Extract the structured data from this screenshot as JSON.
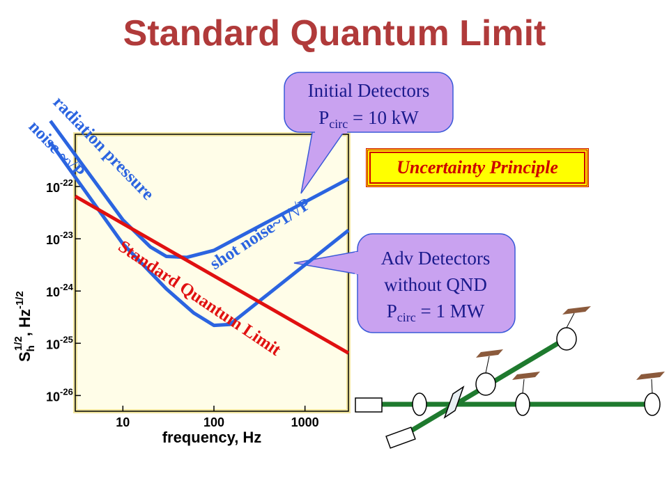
{
  "slide": {
    "title": "Standard Quantum Limit",
    "uncertainty_box": "Uncertainty Principle",
    "callout_initial": {
      "line1": "Initial Detectors",
      "p": "P",
      "sub": "circ",
      "rest": " = 10 kW"
    },
    "callout_adv": {
      "line1": "Adv Detectors",
      "line2": "without QND",
      "p": "P",
      "sub": "circ",
      "rest": " = 1 MW"
    }
  },
  "colors": {
    "title": "#b03a3a",
    "blue_curve": "#2b64e0",
    "sql_line": "#e01010",
    "callout_fill": "#c9a2f0",
    "plot_bg": "#fffde8",
    "plot_border": "#f2e6a0",
    "beam": "#1e7a2e"
  },
  "chart_data": {
    "type": "line",
    "xlabel": "frequency, Hz",
    "x_log": true,
    "y_log": true,
    "xlim": [
      3,
      3000
    ],
    "ylim": [
      5e-27,
      1e-21
    ],
    "x_ticks": [
      {
        "value": 10,
        "label": "10"
      },
      {
        "value": 100,
        "label": "100"
      },
      {
        "value": 1000,
        "label": "1000"
      }
    ],
    "y_ticks": [
      {
        "value": 1e-22,
        "mant": "10",
        "exp": "-22"
      },
      {
        "value": 1e-23,
        "mant": "10",
        "exp": "-23"
      },
      {
        "value": 1e-24,
        "mant": "10",
        "exp": "-24"
      },
      {
        "value": 1e-25,
        "mant": "10",
        "exp": "-25"
      },
      {
        "value": 1e-26,
        "mant": "10",
        "exp": "-26"
      }
    ],
    "ylabel_parts": {
      "s": "S",
      "s_sub": "h",
      "s_sup": "1/2",
      "sep": ", Hz",
      "unit_sup": "-1/2"
    },
    "series": [
      {
        "x": [
          1.6,
          10,
          20,
          30,
          50,
          100,
          3000
        ],
        "y": [
          1.8e-21,
          2.3e-23,
          7e-24,
          4.6e-24,
          4.4e-24,
          6e-24,
          1.4e-22
        ]
      },
      {
        "x": [
          1.6,
          10,
          30,
          60,
          100,
          150,
          3000
        ],
        "y": [
          7e-22,
          8e-24,
          1.1e-24,
          3.8e-25,
          2.2e-25,
          2.3e-25,
          1.45e-23
        ]
      },
      {
        "x": [
          3,
          3000
        ],
        "y": [
          6.5e-23,
          6.5e-26
        ]
      }
    ],
    "annotations": [
      {
        "text": "radiation pressure",
        "color": "blue"
      },
      {
        "text": "noise ~√P",
        "color": "blue"
      },
      {
        "text": "shot noise~1/√P",
        "color": "blue"
      },
      {
        "text": "Standard Quantum Limit",
        "color": "red"
      }
    ]
  }
}
